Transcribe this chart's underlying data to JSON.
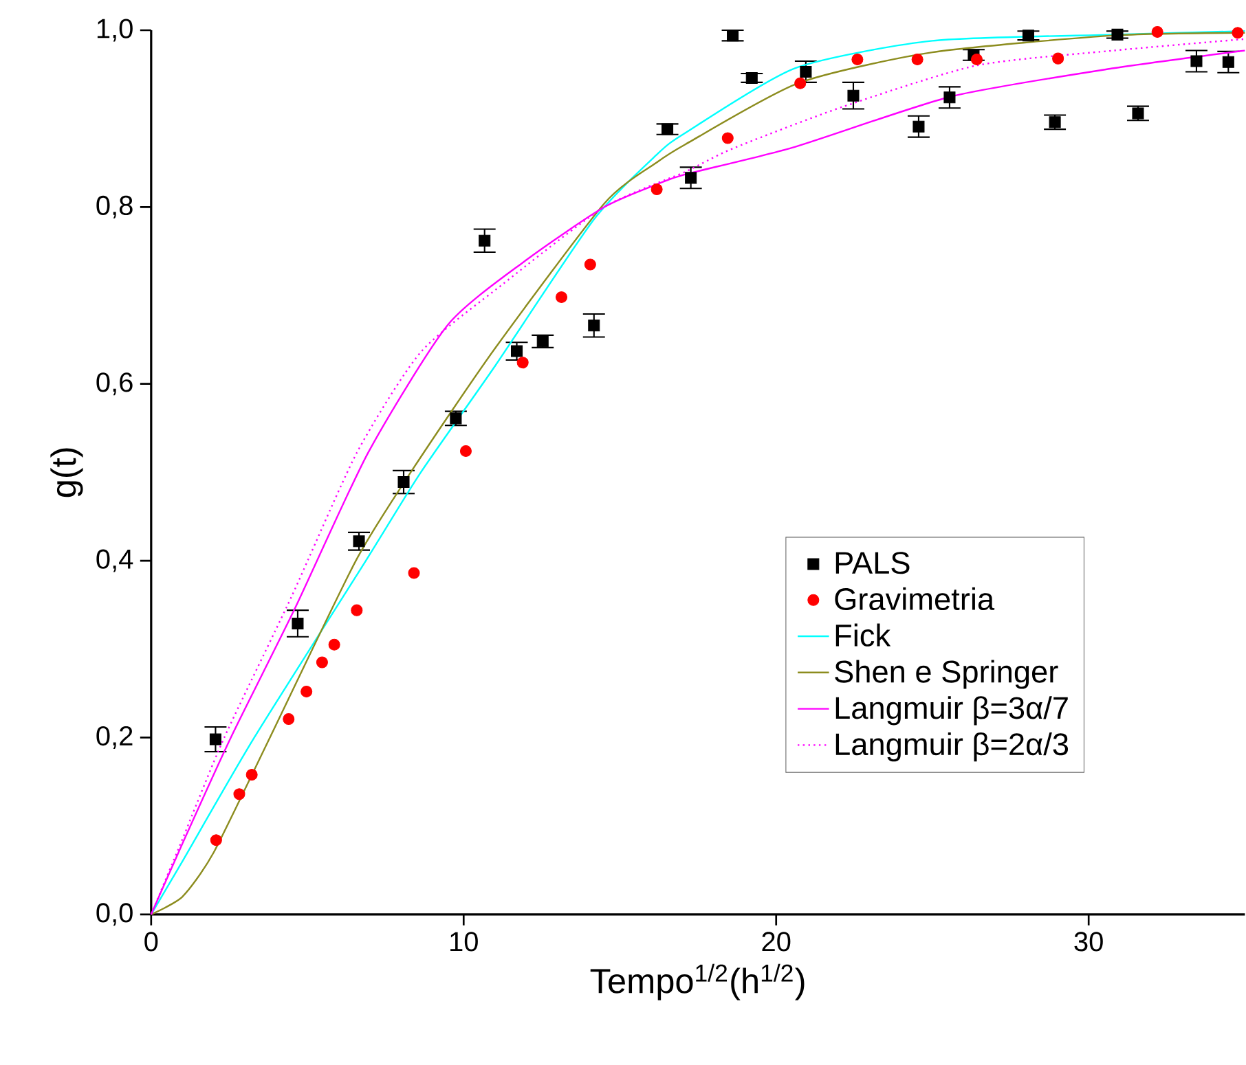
{
  "chart_data": {
    "type": "scatter",
    "xlabel": "Tempo$^{1/2}$(h$^{1/2}$)",
    "ylabel": "g(t)",
    "xlim": [
      0,
      35
    ],
    "ylim": [
      0,
      1.0
    ],
    "xticks": [
      0,
      10,
      20,
      30
    ],
    "yticks": [
      {
        "value": 0,
        "label": "0,0"
      },
      {
        "value": 0.2,
        "label": "0,2"
      },
      {
        "value": 0.4,
        "label": "0,4"
      },
      {
        "value": 0.6,
        "label": "0,6"
      },
      {
        "value": 0.8,
        "label": "0,8"
      },
      {
        "value": 1.0,
        "label": "1,0"
      }
    ],
    "legend": "bottom right",
    "grid": false,
    "series": [
      {
        "name": "PALS",
        "marker": "square",
        "color": "#000000",
        "x": [
          2.06,
          4.69,
          6.65,
          8.08,
          9.75,
          10.67,
          11.7,
          12.53,
          14.17,
          16.52,
          17.27,
          18.61,
          19.22,
          20.95,
          22.47,
          24.56,
          25.55,
          26.32,
          28.07,
          28.92,
          30.92,
          31.58,
          33.45,
          34.47
        ],
        "values": [
          0.198,
          0.329,
          0.422,
          0.489,
          0.561,
          0.762,
          0.637,
          0.648,
          0.666,
          0.888,
          0.833,
          0.994,
          0.946,
          0.953,
          0.926,
          0.891,
          0.924,
          0.972,
          0.994,
          0.896,
          0.995,
          0.906,
          0.965,
          0.964
        ],
        "errors": [
          0.014,
          0.015,
          0.01,
          0.013,
          0.008,
          0.013,
          0.01,
          0.007,
          0.013,
          0.006,
          0.012,
          0.006,
          0.005,
          0.012,
          0.015,
          0.012,
          0.012,
          0.006,
          0.005,
          0.008,
          0.004,
          0.008,
          0.012,
          0.012
        ]
      },
      {
        "name": "Gravimetria",
        "marker": "circle",
        "color": "#ff0000",
        "x": [
          2.08,
          2.82,
          3.22,
          4.4,
          4.97,
          5.47,
          5.86,
          6.58,
          8.41,
          10.07,
          11.89,
          13.13,
          14.05,
          16.18,
          18.45,
          20.77,
          22.6,
          24.52,
          26.42,
          29.02,
          32.2,
          34.77
        ],
        "values": [
          0.084,
          0.136,
          0.158,
          0.221,
          0.252,
          0.285,
          0.305,
          0.344,
          0.386,
          0.524,
          0.624,
          0.698,
          0.735,
          0.82,
          0.878,
          0.94,
          0.967,
          0.967,
          0.967,
          0.968,
          0.998,
          0.997
        ]
      },
      {
        "name": "Fick",
        "type": "line",
        "line_style": "solid",
        "color": "#00ffff",
        "x": [
          0,
          1,
          3.3,
          6.87,
          8.63,
          11,
          14.17,
          16.2,
          17.1,
          20.6,
          25,
          30.8,
          35
        ],
        "values": [
          0,
          0.06,
          0.2,
          0.4,
          0.5,
          0.62,
          0.786,
          0.86,
          0.884,
          0.957,
          0.988,
          0.995,
          0.999
        ]
      },
      {
        "name": "Shen e Springer",
        "type": "line",
        "line_style": "solid",
        "color": "#8c8c1e",
        "x": [
          0,
          1,
          2,
          3.8,
          6.55,
          8.4,
          11,
          14.5,
          16.2,
          17.1,
          20.7,
          25,
          30.8,
          35
        ],
        "values": [
          0,
          0.02,
          0.07,
          0.2,
          0.4,
          0.505,
          0.64,
          0.804,
          0.851,
          0.871,
          0.94,
          0.975,
          0.994,
          0.997
        ]
      },
      {
        "name": "Langmuir β=3α/7",
        "type": "line",
        "line_style": "solid",
        "color": "#ff00ff",
        "x": [
          0,
          1,
          2.55,
          4.6,
          6.94,
          9.5,
          12,
          14.5,
          16.2,
          17.1,
          20.6,
          25.6,
          30.8,
          35
        ],
        "values": [
          0,
          0.08,
          0.2,
          0.346,
          0.522,
          0.667,
          0.74,
          0.8,
          0.826,
          0.837,
          0.868,
          0.925,
          0.957,
          0.977
        ]
      },
      {
        "name": "Langmuir β=2α/3",
        "type": "line",
        "line_style": "dotted",
        "color": "#ff00ff",
        "x": [
          0,
          1,
          2.34,
          4.5,
          6.58,
          8.63,
          11.26,
          14.5,
          17.1,
          18.6,
          22.1,
          26.4,
          30.8,
          35
        ],
        "values": [
          0,
          0.085,
          0.2,
          0.36,
          0.522,
          0.636,
          0.713,
          0.8,
          0.84,
          0.866,
          0.913,
          0.96,
          0.977,
          0.99
        ]
      }
    ]
  }
}
